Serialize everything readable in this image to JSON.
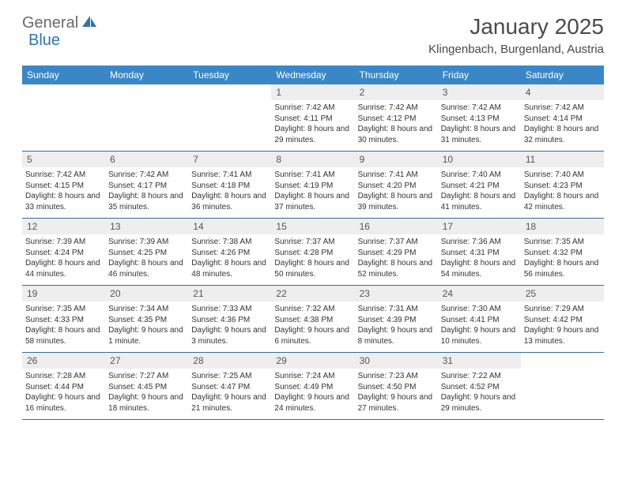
{
  "logo": {
    "text1": "General",
    "text2": "Blue"
  },
  "title": "January 2025",
  "location": "Klingenbach, Burgenland, Austria",
  "colors": {
    "header_bg": "#3a87c8",
    "header_text": "#ffffff",
    "daynum_bg": "#eeeeee",
    "row_border": "#3a6a9a",
    "body_text": "#333333",
    "logo_gray": "#6a6a6a",
    "logo_blue": "#2e74b5"
  },
  "days_of_week": [
    "Sunday",
    "Monday",
    "Tuesday",
    "Wednesday",
    "Thursday",
    "Friday",
    "Saturday"
  ],
  "weeks": [
    [
      {
        "blank": true
      },
      {
        "blank": true
      },
      {
        "blank": true
      },
      {
        "day": "1",
        "sunrise": "Sunrise: 7:42 AM",
        "sunset": "Sunset: 4:11 PM",
        "daylight": "Daylight: 8 hours and 29 minutes."
      },
      {
        "day": "2",
        "sunrise": "Sunrise: 7:42 AM",
        "sunset": "Sunset: 4:12 PM",
        "daylight": "Daylight: 8 hours and 30 minutes."
      },
      {
        "day": "3",
        "sunrise": "Sunrise: 7:42 AM",
        "sunset": "Sunset: 4:13 PM",
        "daylight": "Daylight: 8 hours and 31 minutes."
      },
      {
        "day": "4",
        "sunrise": "Sunrise: 7:42 AM",
        "sunset": "Sunset: 4:14 PM",
        "daylight": "Daylight: 8 hours and 32 minutes."
      }
    ],
    [
      {
        "day": "5",
        "sunrise": "Sunrise: 7:42 AM",
        "sunset": "Sunset: 4:15 PM",
        "daylight": "Daylight: 8 hours and 33 minutes."
      },
      {
        "day": "6",
        "sunrise": "Sunrise: 7:42 AM",
        "sunset": "Sunset: 4:17 PM",
        "daylight": "Daylight: 8 hours and 35 minutes."
      },
      {
        "day": "7",
        "sunrise": "Sunrise: 7:41 AM",
        "sunset": "Sunset: 4:18 PM",
        "daylight": "Daylight: 8 hours and 36 minutes."
      },
      {
        "day": "8",
        "sunrise": "Sunrise: 7:41 AM",
        "sunset": "Sunset: 4:19 PM",
        "daylight": "Daylight: 8 hours and 37 minutes."
      },
      {
        "day": "9",
        "sunrise": "Sunrise: 7:41 AM",
        "sunset": "Sunset: 4:20 PM",
        "daylight": "Daylight: 8 hours and 39 minutes."
      },
      {
        "day": "10",
        "sunrise": "Sunrise: 7:40 AM",
        "sunset": "Sunset: 4:21 PM",
        "daylight": "Daylight: 8 hours and 41 minutes."
      },
      {
        "day": "11",
        "sunrise": "Sunrise: 7:40 AM",
        "sunset": "Sunset: 4:23 PM",
        "daylight": "Daylight: 8 hours and 42 minutes."
      }
    ],
    [
      {
        "day": "12",
        "sunrise": "Sunrise: 7:39 AM",
        "sunset": "Sunset: 4:24 PM",
        "daylight": "Daylight: 8 hours and 44 minutes."
      },
      {
        "day": "13",
        "sunrise": "Sunrise: 7:39 AM",
        "sunset": "Sunset: 4:25 PM",
        "daylight": "Daylight: 8 hours and 46 minutes."
      },
      {
        "day": "14",
        "sunrise": "Sunrise: 7:38 AM",
        "sunset": "Sunset: 4:26 PM",
        "daylight": "Daylight: 8 hours and 48 minutes."
      },
      {
        "day": "15",
        "sunrise": "Sunrise: 7:37 AM",
        "sunset": "Sunset: 4:28 PM",
        "daylight": "Daylight: 8 hours and 50 minutes."
      },
      {
        "day": "16",
        "sunrise": "Sunrise: 7:37 AM",
        "sunset": "Sunset: 4:29 PM",
        "daylight": "Daylight: 8 hours and 52 minutes."
      },
      {
        "day": "17",
        "sunrise": "Sunrise: 7:36 AM",
        "sunset": "Sunset: 4:31 PM",
        "daylight": "Daylight: 8 hours and 54 minutes."
      },
      {
        "day": "18",
        "sunrise": "Sunrise: 7:35 AM",
        "sunset": "Sunset: 4:32 PM",
        "daylight": "Daylight: 8 hours and 56 minutes."
      }
    ],
    [
      {
        "day": "19",
        "sunrise": "Sunrise: 7:35 AM",
        "sunset": "Sunset: 4:33 PM",
        "daylight": "Daylight: 8 hours and 58 minutes."
      },
      {
        "day": "20",
        "sunrise": "Sunrise: 7:34 AM",
        "sunset": "Sunset: 4:35 PM",
        "daylight": "Daylight: 9 hours and 1 minute."
      },
      {
        "day": "21",
        "sunrise": "Sunrise: 7:33 AM",
        "sunset": "Sunset: 4:36 PM",
        "daylight": "Daylight: 9 hours and 3 minutes."
      },
      {
        "day": "22",
        "sunrise": "Sunrise: 7:32 AM",
        "sunset": "Sunset: 4:38 PM",
        "daylight": "Daylight: 9 hours and 6 minutes."
      },
      {
        "day": "23",
        "sunrise": "Sunrise: 7:31 AM",
        "sunset": "Sunset: 4:39 PM",
        "daylight": "Daylight: 9 hours and 8 minutes."
      },
      {
        "day": "24",
        "sunrise": "Sunrise: 7:30 AM",
        "sunset": "Sunset: 4:41 PM",
        "daylight": "Daylight: 9 hours and 10 minutes."
      },
      {
        "day": "25",
        "sunrise": "Sunrise: 7:29 AM",
        "sunset": "Sunset: 4:42 PM",
        "daylight": "Daylight: 9 hours and 13 minutes."
      }
    ],
    [
      {
        "day": "26",
        "sunrise": "Sunrise: 7:28 AM",
        "sunset": "Sunset: 4:44 PM",
        "daylight": "Daylight: 9 hours and 16 minutes."
      },
      {
        "day": "27",
        "sunrise": "Sunrise: 7:27 AM",
        "sunset": "Sunset: 4:45 PM",
        "daylight": "Daylight: 9 hours and 18 minutes."
      },
      {
        "day": "28",
        "sunrise": "Sunrise: 7:25 AM",
        "sunset": "Sunset: 4:47 PM",
        "daylight": "Daylight: 9 hours and 21 minutes."
      },
      {
        "day": "29",
        "sunrise": "Sunrise: 7:24 AM",
        "sunset": "Sunset: 4:49 PM",
        "daylight": "Daylight: 9 hours and 24 minutes."
      },
      {
        "day": "30",
        "sunrise": "Sunrise: 7:23 AM",
        "sunset": "Sunset: 4:50 PM",
        "daylight": "Daylight: 9 hours and 27 minutes."
      },
      {
        "day": "31",
        "sunrise": "Sunrise: 7:22 AM",
        "sunset": "Sunset: 4:52 PM",
        "daylight": "Daylight: 9 hours and 29 minutes."
      },
      {
        "blank": true
      }
    ]
  ]
}
